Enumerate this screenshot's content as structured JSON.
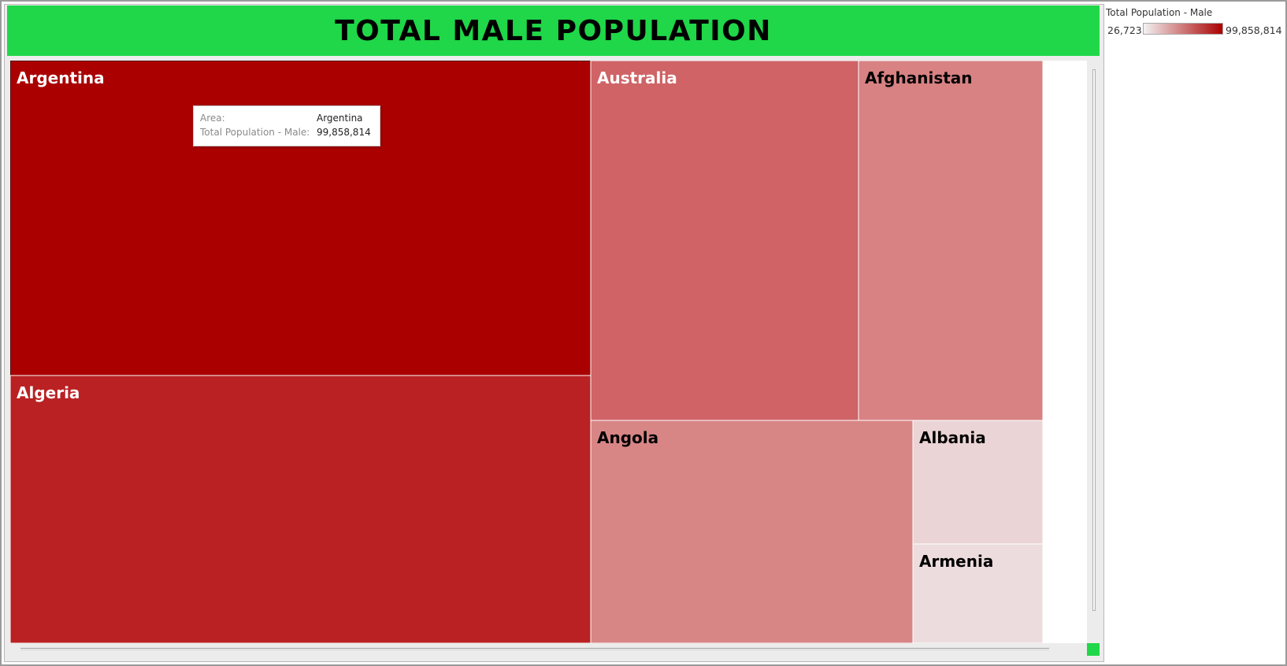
{
  "dashboard": {
    "title": "TOTAL MALE POPULATION",
    "title_bg_color": "#1fd748"
  },
  "legend": {
    "title": "Total Population - Male",
    "min_label": "26,723",
    "max_label": "99,858,814",
    "color_low": "#f2f2f2",
    "color_high": "#aa0000"
  },
  "tooltip": {
    "rows": [
      {
        "key": "Area:",
        "value": "Argentina"
      },
      {
        "key": "Total Population - Male:",
        "value": "99,858,814"
      }
    ]
  },
  "chart_data": {
    "type": "treemap",
    "title": "TOTAL MALE POPULATION",
    "color_measure": "Total Population - Male",
    "color_range": [
      26723,
      99858814
    ],
    "legend_position": "top-right",
    "items": [
      {
        "name": "Argentina",
        "value": 99858814,
        "color": "#aa0000",
        "label_color": "#ffffff",
        "selected": true
      },
      {
        "name": "Algeria",
        "value": 78000000,
        "color": "#b92123",
        "label_color": "#ffffff"
      },
      {
        "name": "Australia",
        "value": 60000000,
        "color": "#cf6366",
        "label_color": "#ffffff"
      },
      {
        "name": "Afghanistan",
        "value": 42000000,
        "color": "#d88283",
        "label_color": "#000000"
      },
      {
        "name": "Angola",
        "value": 41000000,
        "color": "#d88586",
        "label_color": "#000000"
      },
      {
        "name": "Albania",
        "value": 9000000,
        "color": "#ebd4d5",
        "label_color": "#000000"
      },
      {
        "name": "Armenia",
        "value": 7000000,
        "color": "#ecdcdd",
        "label_color": "#000000"
      }
    ]
  }
}
